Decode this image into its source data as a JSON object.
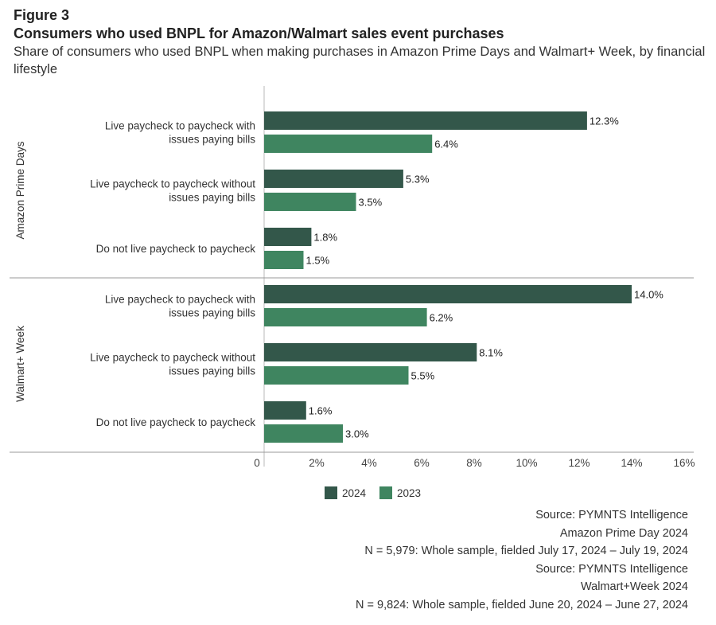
{
  "figure_label": "Figure 3",
  "title": "Consumers who used BNPL for Amazon/Walmart sales event purchases",
  "subtitle": "Share of consumers who used BNPL when making purchases in Amazon Prime Days and Walmart+ Week, by financial lifestyle",
  "chart_data": {
    "type": "bar",
    "orientation": "horizontal",
    "groups": [
      {
        "name": "Amazon Prime Days",
        "categories": [
          "Live paycheck to paycheck with issues paying bills",
          "Live paycheck to paycheck without issues paying bills",
          "Do not live paycheck to paycheck"
        ]
      },
      {
        "name": "Walmart+ Week",
        "categories": [
          "Live paycheck to paycheck with issues paying bills",
          "Live paycheck to paycheck without issues paying bills",
          "Do not live paycheck to paycheck"
        ]
      }
    ],
    "series": [
      {
        "name": "2024",
        "color": "#33574a",
        "values": [
          [
            12.3,
            5.3,
            1.8
          ],
          [
            14.0,
            8.1,
            1.6
          ]
        ]
      },
      {
        "name": "2023",
        "color": "#3f8560",
        "values": [
          [
            6.4,
            3.5,
            1.5
          ],
          [
            6.2,
            5.5,
            3.0
          ]
        ]
      }
    ],
    "xlim": [
      0,
      16
    ],
    "xticks": [
      "0",
      "2%",
      "4%",
      "6%",
      "8%",
      "10%",
      "12%",
      "14%",
      "16%"
    ],
    "legend_position": "bottom",
    "grid": false
  },
  "source_lines": [
    "Source: PYMNTS Intelligence",
    "Amazon Prime Day 2024",
    "N = 5,979: Whole sample, fielded July 17, 2024 – July 19, 2024",
    "Source: PYMNTS Intelligence",
    "Walmart+Week 2024",
    "N = 9,824: Whole sample, fielded June 20, 2024 – June 27, 2024"
  ]
}
